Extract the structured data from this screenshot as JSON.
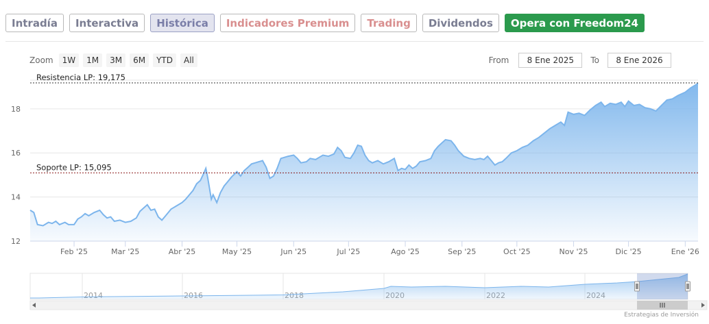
{
  "tabs": [
    {
      "label": "Intradía"
    },
    {
      "label": "Interactiva"
    },
    {
      "label": "Histórica"
    },
    {
      "label": "Indicadores Premium"
    },
    {
      "label": "Trading"
    },
    {
      "label": "Dividendos"
    }
  ],
  "cta": {
    "label": "Opera con Freedom24"
  },
  "zoom": {
    "label": "Zoom",
    "buttons": [
      "1W",
      "1M",
      "3M",
      "6M",
      "YTD",
      "All"
    ]
  },
  "range": {
    "from_label": "From",
    "from_value": "8 Ene 2025",
    "to_label": "To",
    "to_value": "8 Ene 2026"
  },
  "credits": "Estrategias de Inversión",
  "colors": {
    "line": "#7cb5ec",
    "area_top": "#7cb5ec",
    "resistance": "#333333",
    "support": "#8b1a1a",
    "cta": "#2b9a4d"
  },
  "chart_data": {
    "type": "area",
    "ylim": [
      12,
      19.3
    ],
    "y_ticks": [
      12,
      14,
      16,
      18
    ],
    "x_tick_labels": [
      "Feb '25",
      "Mar '25",
      "Abr '25",
      "May '25",
      "Jun '25",
      "Jul '25",
      "Ago '25",
      "Sep '25",
      "Oct '25",
      "Nov '25",
      "Dic '25",
      "Ene '26"
    ],
    "x_tick_dates": [
      "2025-02-01",
      "2025-03-01",
      "2025-04-01",
      "2025-05-01",
      "2025-06-01",
      "2025-07-01",
      "2025-08-01",
      "2025-09-01",
      "2025-10-01",
      "2025-11-01",
      "2025-12-01",
      "2026-01-01"
    ],
    "x_range": [
      "2025-01-08",
      "2026-01-08"
    ],
    "series": [
      {
        "points": [
          [
            "2025-01-08",
            13.4
          ],
          [
            "2025-01-10",
            13.3
          ],
          [
            "2025-01-12",
            12.75
          ],
          [
            "2025-01-15",
            12.7
          ],
          [
            "2025-01-18",
            12.85
          ],
          [
            "2025-01-20",
            12.8
          ],
          [
            "2025-01-22",
            12.9
          ],
          [
            "2025-01-24",
            12.75
          ],
          [
            "2025-01-27",
            12.85
          ],
          [
            "2025-01-29",
            12.75
          ],
          [
            "2025-02-01",
            12.75
          ],
          [
            "2025-02-03",
            13.0
          ],
          [
            "2025-02-05",
            13.1
          ],
          [
            "2025-02-07",
            13.25
          ],
          [
            "2025-02-09",
            13.15
          ],
          [
            "2025-02-12",
            13.3
          ],
          [
            "2025-02-15",
            13.4
          ],
          [
            "2025-02-17",
            13.2
          ],
          [
            "2025-02-19",
            13.05
          ],
          [
            "2025-02-21",
            13.1
          ],
          [
            "2025-02-23",
            12.9
          ],
          [
            "2025-02-26",
            12.95
          ],
          [
            "2025-03-01",
            12.85
          ],
          [
            "2025-03-04",
            12.9
          ],
          [
            "2025-03-07",
            13.05
          ],
          [
            "2025-03-09",
            13.35
          ],
          [
            "2025-03-11",
            13.5
          ],
          [
            "2025-03-13",
            13.65
          ],
          [
            "2025-03-15",
            13.4
          ],
          [
            "2025-03-17",
            13.45
          ],
          [
            "2025-03-19",
            13.1
          ],
          [
            "2025-03-21",
            12.95
          ],
          [
            "2025-03-23",
            13.15
          ],
          [
            "2025-03-26",
            13.45
          ],
          [
            "2025-03-29",
            13.6
          ],
          [
            "2025-04-01",
            13.75
          ],
          [
            "2025-04-03",
            13.9
          ],
          [
            "2025-04-05",
            14.1
          ],
          [
            "2025-04-07",
            14.3
          ],
          [
            "2025-04-09",
            14.6
          ],
          [
            "2025-04-11",
            14.75
          ],
          [
            "2025-04-13",
            15.1
          ],
          [
            "2025-04-14",
            15.3
          ],
          [
            "2025-04-15",
            14.9
          ],
          [
            "2025-04-17",
            13.9
          ],
          [
            "2025-04-18",
            14.1
          ],
          [
            "2025-04-20",
            13.75
          ],
          [
            "2025-04-22",
            14.2
          ],
          [
            "2025-04-24",
            14.5
          ],
          [
            "2025-04-26",
            14.7
          ],
          [
            "2025-04-28",
            14.9
          ],
          [
            "2025-05-01",
            15.15
          ],
          [
            "2025-05-03",
            14.95
          ],
          [
            "2025-05-05",
            15.2
          ],
          [
            "2025-05-07",
            15.35
          ],
          [
            "2025-05-09",
            15.5
          ],
          [
            "2025-05-11",
            15.55
          ],
          [
            "2025-05-13",
            15.6
          ],
          [
            "2025-05-15",
            15.65
          ],
          [
            "2025-05-17",
            15.35
          ],
          [
            "2025-05-19",
            14.85
          ],
          [
            "2025-05-21",
            14.95
          ],
          [
            "2025-05-23",
            15.3
          ],
          [
            "2025-05-25",
            15.75
          ],
          [
            "2025-05-27",
            15.8
          ],
          [
            "2025-05-29",
            15.85
          ],
          [
            "2025-06-01",
            15.9
          ],
          [
            "2025-06-03",
            15.75
          ],
          [
            "2025-06-05",
            15.55
          ],
          [
            "2025-06-08",
            15.6
          ],
          [
            "2025-06-10",
            15.75
          ],
          [
            "2025-06-13",
            15.7
          ],
          [
            "2025-06-15",
            15.8
          ],
          [
            "2025-06-17",
            15.9
          ],
          [
            "2025-06-20",
            15.85
          ],
          [
            "2025-06-23",
            15.95
          ],
          [
            "2025-06-25",
            16.25
          ],
          [
            "2025-06-27",
            16.1
          ],
          [
            "2025-06-29",
            15.8
          ],
          [
            "2025-07-02",
            15.75
          ],
          [
            "2025-07-04",
            16.0
          ],
          [
            "2025-07-06",
            16.35
          ],
          [
            "2025-07-08",
            16.3
          ],
          [
            "2025-07-10",
            15.9
          ],
          [
            "2025-07-12",
            15.65
          ],
          [
            "2025-07-14",
            15.55
          ],
          [
            "2025-07-17",
            15.65
          ],
          [
            "2025-07-20",
            15.5
          ],
          [
            "2025-07-23",
            15.6
          ],
          [
            "2025-07-26",
            15.75
          ],
          [
            "2025-07-28",
            15.2
          ],
          [
            "2025-07-30",
            15.3
          ],
          [
            "2025-08-01",
            15.25
          ],
          [
            "2025-08-03",
            15.45
          ],
          [
            "2025-08-05",
            15.3
          ],
          [
            "2025-08-07",
            15.4
          ],
          [
            "2025-08-09",
            15.6
          ],
          [
            "2025-08-12",
            15.65
          ],
          [
            "2025-08-15",
            15.75
          ],
          [
            "2025-08-17",
            16.1
          ],
          [
            "2025-08-19",
            16.3
          ],
          [
            "2025-08-21",
            16.45
          ],
          [
            "2025-08-23",
            16.6
          ],
          [
            "2025-08-26",
            16.55
          ],
          [
            "2025-08-28",
            16.35
          ],
          [
            "2025-08-30",
            16.1
          ],
          [
            "2025-09-02",
            15.85
          ],
          [
            "2025-09-05",
            15.75
          ],
          [
            "2025-09-08",
            15.7
          ],
          [
            "2025-09-11",
            15.75
          ],
          [
            "2025-09-13",
            15.7
          ],
          [
            "2025-09-15",
            15.85
          ],
          [
            "2025-09-17",
            15.65
          ],
          [
            "2025-09-19",
            15.45
          ],
          [
            "2025-09-21",
            15.55
          ],
          [
            "2025-09-23",
            15.6
          ],
          [
            "2025-09-25",
            15.75
          ],
          [
            "2025-09-28",
            16.0
          ],
          [
            "2025-10-01",
            16.1
          ],
          [
            "2025-10-04",
            16.25
          ],
          [
            "2025-10-07",
            16.35
          ],
          [
            "2025-10-10",
            16.55
          ],
          [
            "2025-10-13",
            16.7
          ],
          [
            "2025-10-16",
            16.9
          ],
          [
            "2025-10-19",
            17.1
          ],
          [
            "2025-10-22",
            17.25
          ],
          [
            "2025-10-25",
            17.4
          ],
          [
            "2025-10-27",
            17.25
          ],
          [
            "2025-10-29",
            17.85
          ],
          [
            "2025-11-01",
            17.75
          ],
          [
            "2025-11-04",
            17.8
          ],
          [
            "2025-11-07",
            17.7
          ],
          [
            "2025-11-10",
            17.95
          ],
          [
            "2025-11-13",
            18.15
          ],
          [
            "2025-11-16",
            18.3
          ],
          [
            "2025-11-18",
            18.1
          ],
          [
            "2025-11-21",
            18.25
          ],
          [
            "2025-11-24",
            18.2
          ],
          [
            "2025-11-27",
            18.3
          ],
          [
            "2025-11-29",
            18.1
          ],
          [
            "2025-12-01",
            18.35
          ],
          [
            "2025-12-04",
            18.15
          ],
          [
            "2025-12-07",
            18.2
          ],
          [
            "2025-12-10",
            18.05
          ],
          [
            "2025-12-13",
            18.0
          ],
          [
            "2025-12-16",
            17.9
          ],
          [
            "2025-12-19",
            18.15
          ],
          [
            "2025-12-22",
            18.4
          ],
          [
            "2025-12-25",
            18.45
          ],
          [
            "2025-12-28",
            18.6
          ],
          [
            "2026-01-01",
            18.75
          ],
          [
            "2026-01-04",
            18.95
          ],
          [
            "2026-01-08",
            19.15
          ]
        ]
      }
    ],
    "annotations": [
      {
        "label": "Resistencia LP: 19,175",
        "value": 19.175,
        "style": "dashed"
      },
      {
        "label": "Soporte LP: 15,095",
        "value": 15.095,
        "style": "dashed"
      }
    ],
    "navigator": {
      "x_labels": [
        "2014",
        "2016",
        "2018",
        "2020",
        "2022",
        "2024"
      ],
      "selected_range": [
        "2025-01-08",
        "2026-01-08"
      ]
    },
    "grid": true,
    "legend": "none"
  }
}
